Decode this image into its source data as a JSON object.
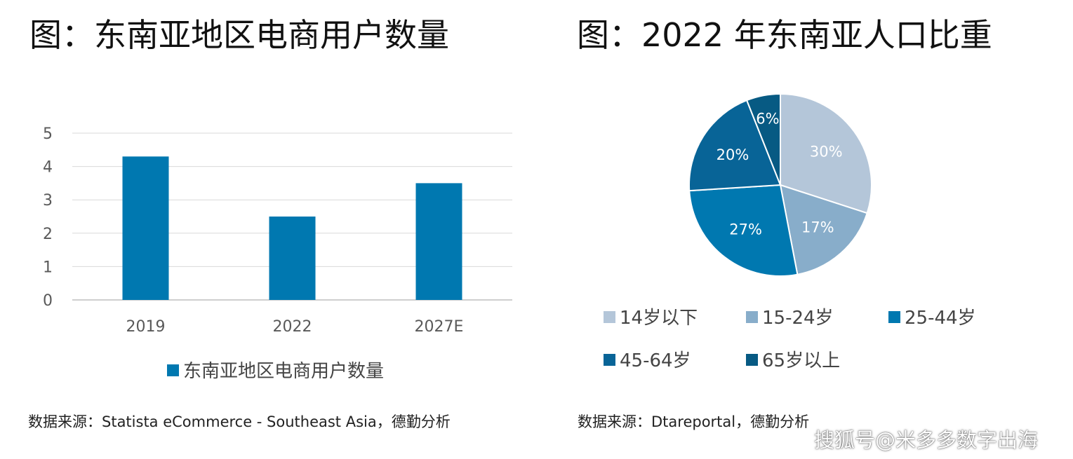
{
  "left": {
    "title": "图：东南亚地区电商用户数量",
    "source": "数据来源：Statista eCommerce - Southeast Asia，德勤分析"
  },
  "right": {
    "title": "图：2022 年东南亚人口比重",
    "source": "数据来源：Dtareportal，德勤分析"
  },
  "watermark": "搜狐号@米多多数字出海",
  "chart_data": [
    {
      "type": "bar",
      "categories": [
        "2019",
        "2022",
        "2027E"
      ],
      "series": [
        {
          "name": "东南亚地区电商用户数量",
          "values": [
            4.3,
            2.5,
            3.5
          ],
          "color": "#0078B0"
        }
      ],
      "ylim": [
        0,
        5
      ],
      "yticks": [
        0,
        1,
        2,
        3,
        4,
        5
      ],
      "grid": true,
      "legend_position": "bottom"
    },
    {
      "type": "pie",
      "slices": [
        {
          "label": "14岁以下",
          "value": 30,
          "display": "30%",
          "color": "#B4C6D9"
        },
        {
          "label": "15-24岁",
          "value": 17,
          "display": "17%",
          "color": "#88ADCA"
        },
        {
          "label": "25-44岁",
          "value": 27,
          "display": "27%",
          "color": "#0078B0"
        },
        {
          "label": "45-64岁",
          "value": 20,
          "display": "20%",
          "color": "#086497"
        },
        {
          "label": "65岁以上",
          "value": 6,
          "display": "6%",
          "color": "#075A83"
        }
      ],
      "legend_position": "bottom"
    }
  ]
}
